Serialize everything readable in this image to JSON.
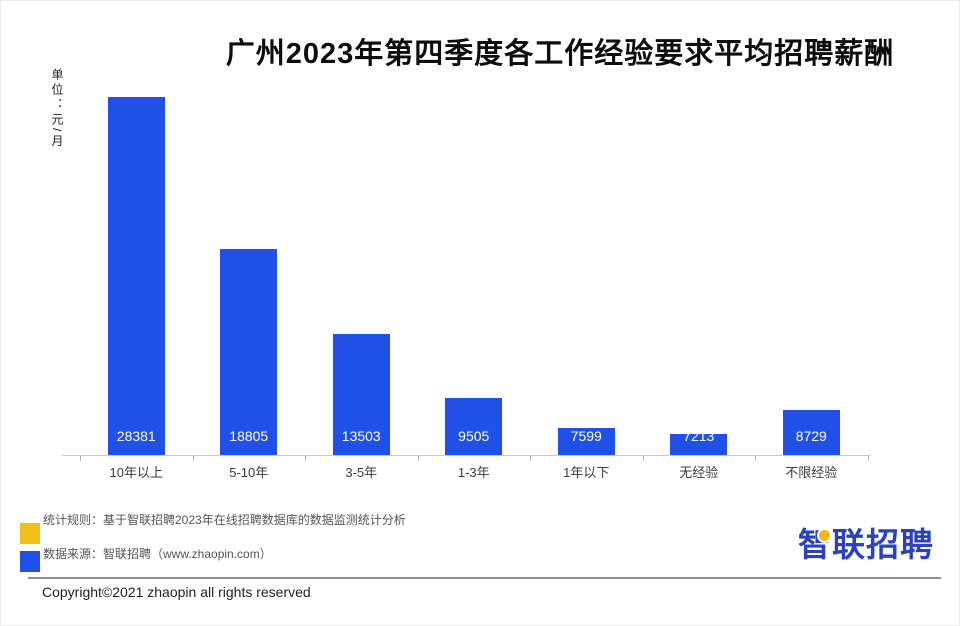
{
  "header": {
    "title": "广州2023年第四季度各工作经验要求平均招聘薪酬",
    "unit_label": "单位：元/月"
  },
  "chart_data": {
    "type": "bar",
    "title": "广州2023年第四季度各工作经验要求平均招聘薪酬",
    "unit": "元/月",
    "categories": [
      "10年以上",
      "5-10年",
      "3-5年",
      "1-3年",
      "1年以下",
      "无经验",
      "不限经验"
    ],
    "values": [
      28381,
      18805,
      13503,
      9505,
      7599,
      7213,
      8729
    ],
    "xlabel": "",
    "ylabel": "单位：元/月",
    "ylim": [
      5900,
      28500
    ],
    "grid": false,
    "legend_position": "none",
    "bar_color": "#2150e8",
    "value_label_color": "#ffffff"
  },
  "footnotes": {
    "stat_rule": {
      "swatch_color": "#f2c01a",
      "text": "统计规则：基于智联招聘2023年在线招聘数据库的数据监测统计分析"
    },
    "data_source": {
      "swatch_color": "#2150e8",
      "text": "数据来源：智联招聘（www.zhaopin.com）"
    }
  },
  "branding": {
    "logo_text": "智联招聘",
    "logo_color": "#2b40c3",
    "logo_dot_color": "#eeb911"
  },
  "footer": {
    "copyright": "Copyright©2021 zhaopin all rights reserved"
  }
}
